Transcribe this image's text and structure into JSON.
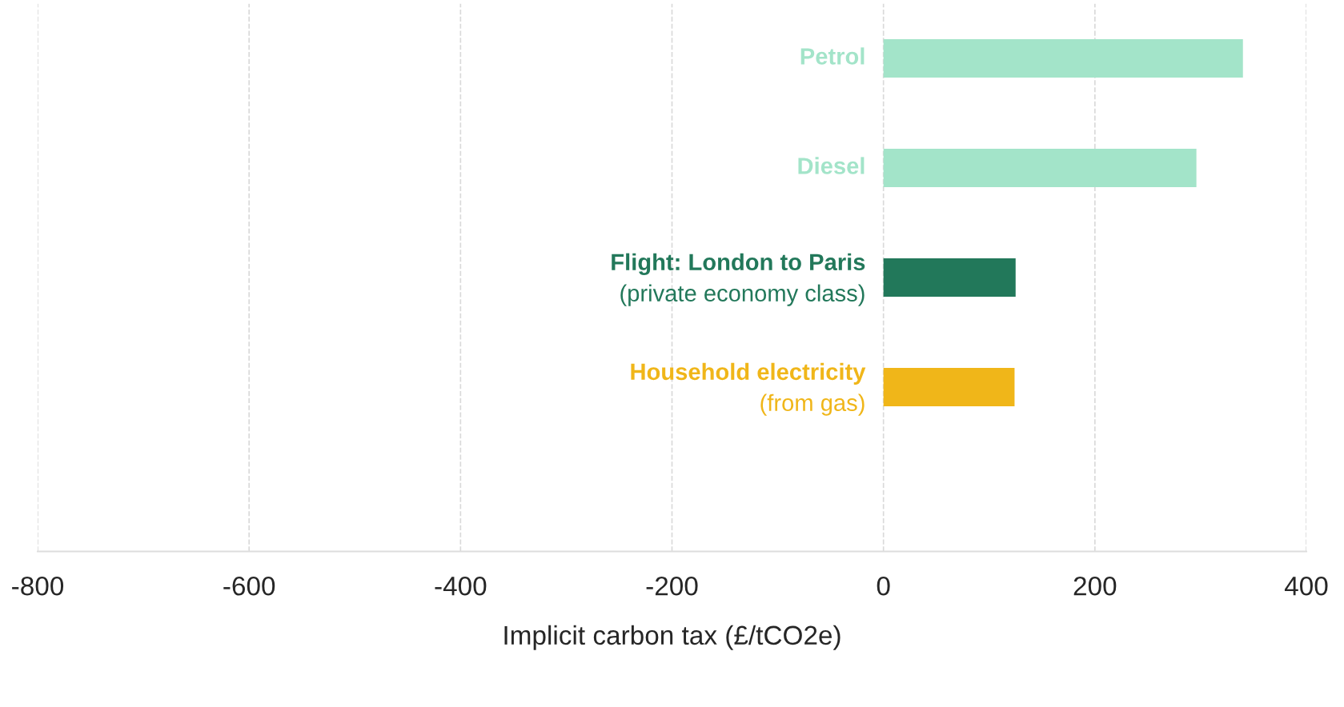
{
  "chart_data": {
    "type": "bar",
    "orientation": "horizontal",
    "categories": [
      "Petrol",
      "Diesel",
      "Flight: London to Paris\n(private economy class)",
      "Household electricity\n(from gas)",
      null
    ],
    "values": [
      340,
      296,
      125,
      124,
      null
    ],
    "colors": [
      "#a3e4c9",
      "#a3e4c9",
      "#22785a",
      "#f0b619",
      "#a3e4c9"
    ],
    "xlabel": "Implicit carbon tax (£/tCO2e)",
    "xlim": [
      -800,
      400
    ],
    "xticks": [
      -800,
      -600,
      -400,
      -200,
      0,
      200,
      400
    ],
    "grid": "x",
    "legend": false,
    "tick_labels": "x"
  }
}
